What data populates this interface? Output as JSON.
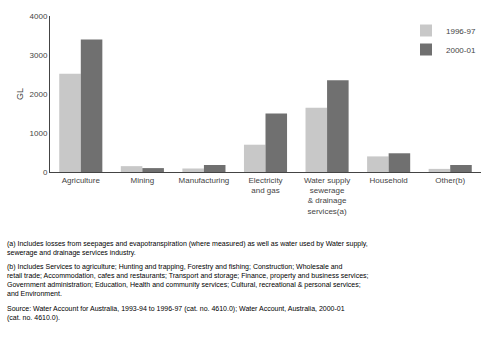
{
  "chart_data": {
    "type": "bar",
    "categories": [
      "Agriculture",
      "Mining",
      "Manufacturing",
      "Electricity\nand gas",
      "Water supply\nsewerage\n& drainage\nservices(a)",
      "Household",
      "Other(b)"
    ],
    "series": [
      {
        "name": "1996-97",
        "color": "#c8c8c8",
        "values": [
          2520,
          150,
          90,
          700,
          1650,
          400,
          80
        ]
      },
      {
        "name": "2000-01",
        "color": "#707070",
        "values": [
          3400,
          100,
          180,
          1500,
          2350,
          480,
          180
        ]
      }
    ],
    "ylabel": "GL",
    "ylim": [
      0,
      4000
    ],
    "yticks": [
      0,
      1000,
      2000,
      3000,
      4000
    ],
    "grid": false,
    "legend": "upper right",
    "annotations": [
      "(a) Includes losses from seepages and evapotranspiration (where measured) as well as water used by Water supply,\nsewerage and drainage services industry.",
      "(b) Includes Services to agriculture; Hunting and trapping, Forestry and fishing; Construction; Wholesale and\nretail trade; Accommodation, cafes and restaurants; Transport and storage; Finance, property and business services;\nGovernment administration; Education, Health and community services; Cultural, recreational & personal services;\nand Environment.",
      "Source: Water Account for Australia, 1993-94 to 1996-97 (cat. no. 4610.0); Water Account, Australia, 2000-01\n(cat. no. 4610.0)."
    ]
  }
}
